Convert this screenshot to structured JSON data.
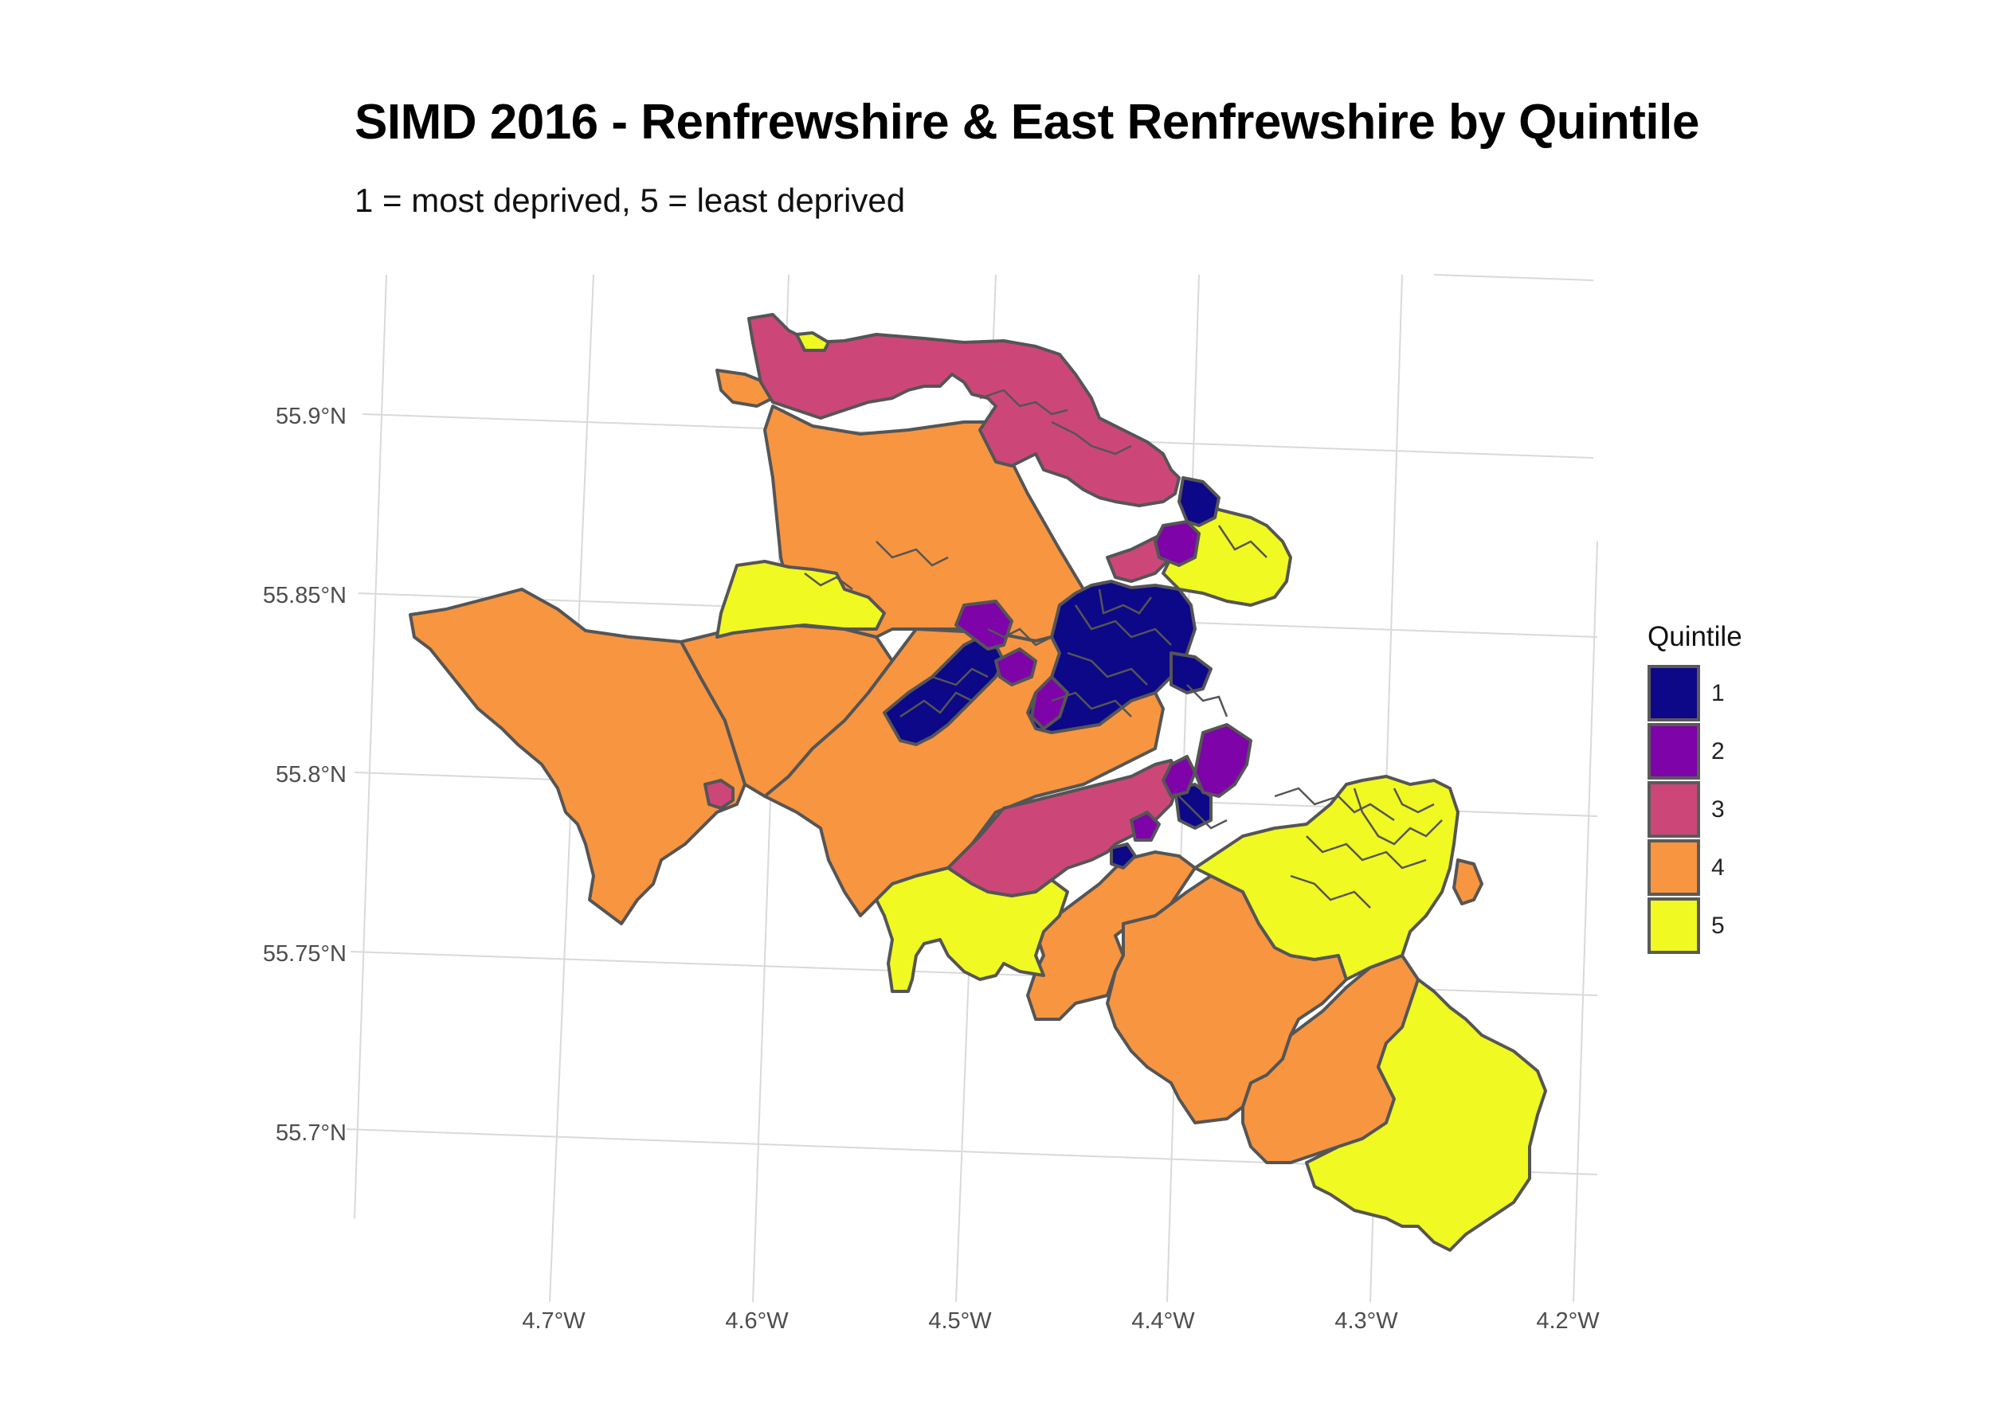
{
  "title": "SIMD 2016 - Renfrewshire & East Renfrewshire by Quintile",
  "subtitle": "1 = most deprived, 5 = least deprived",
  "axes": {
    "x_ticks": [
      "4.7°W",
      "4.6°W",
      "4.5°W",
      "4.4°W",
      "4.3°W",
      "4.2°W"
    ],
    "y_ticks": [
      "55.9°N",
      "55.85°N",
      "55.8°N",
      "55.75°N",
      "55.7°N"
    ]
  },
  "legend": {
    "title": "Quintile",
    "items": [
      {
        "label": "1",
        "color": "#0d0887"
      },
      {
        "label": "2",
        "color": "#7e03a8"
      },
      {
        "label": "3",
        "color": "#cc4778"
      },
      {
        "label": "4",
        "color": "#f89540"
      },
      {
        "label": "5",
        "color": "#f0f921"
      }
    ]
  },
  "colors": {
    "q1": "#0d0887",
    "q2": "#7e03a8",
    "q3": "#cc4778",
    "q4": "#f89540",
    "q5": "#f0f921",
    "border": "#555555",
    "grid": "#d9d9d9"
  }
}
